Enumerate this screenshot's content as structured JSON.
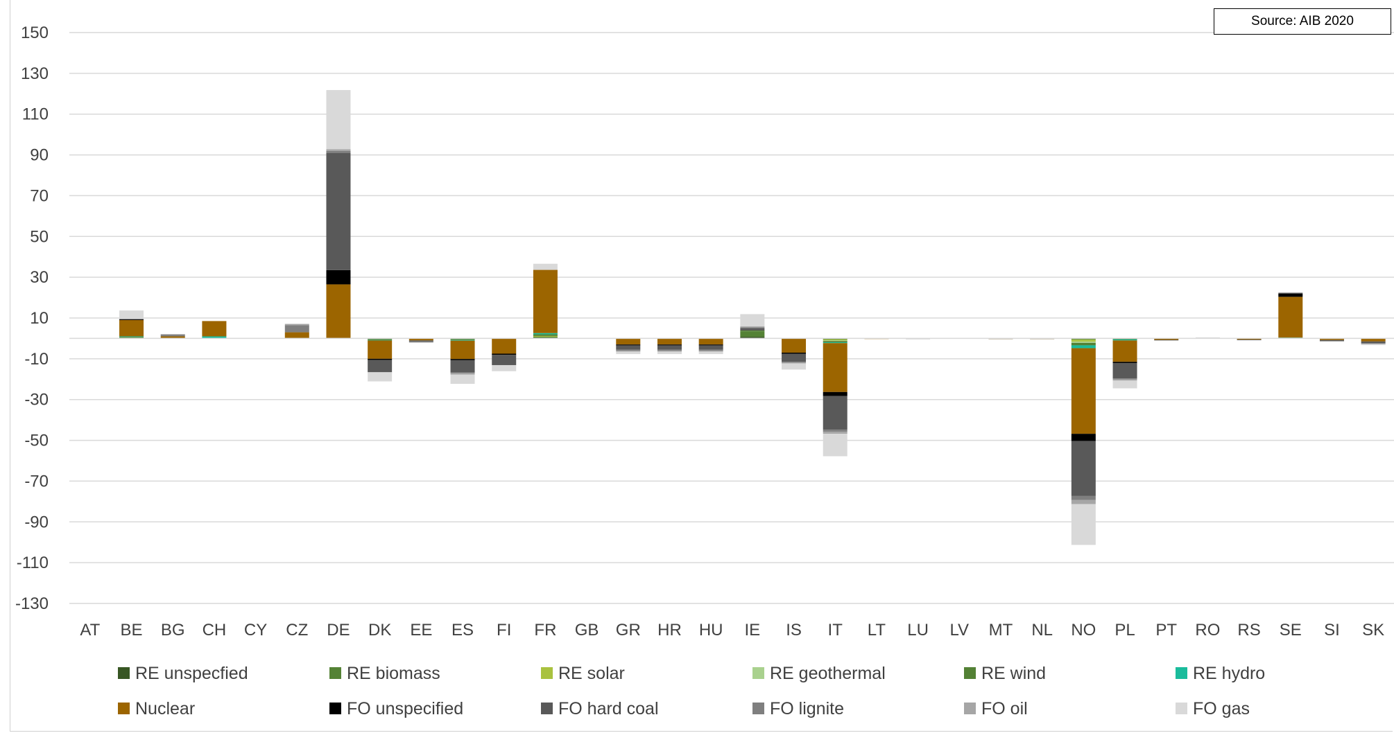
{
  "source_note": "Source: AIB 2020",
  "chart_data": {
    "type": "bar",
    "stacked": true,
    "title": "",
    "xlabel": "",
    "ylabel": "",
    "ylim": [
      -130,
      150
    ],
    "yticks": [
      150,
      130,
      110,
      90,
      70,
      50,
      30,
      10,
      -10,
      -30,
      -50,
      -70,
      -90,
      -110,
      -130
    ],
    "grid": true,
    "legend_position": "bottom",
    "categories": [
      "AT",
      "BE",
      "BG",
      "CH",
      "CY",
      "CZ",
      "DE",
      "DK",
      "EE",
      "ES",
      "FI",
      "FR",
      "GB",
      "GR",
      "HR",
      "HU",
      "IE",
      "IS",
      "IT",
      "LT",
      "LU",
      "LV",
      "MT",
      "NL",
      "NO",
      "PL",
      "PT",
      "RO",
      "RS",
      "SE",
      "SI",
      "SK"
    ],
    "series": [
      {
        "name": "RE unspecfied",
        "color": "#375623",
        "values": [
          0,
          0,
          0,
          0,
          0,
          0,
          0,
          0,
          0,
          0,
          0,
          0,
          0,
          0,
          0,
          0,
          0.8,
          0,
          0,
          0,
          0,
          0,
          0,
          0,
          0,
          0,
          0,
          0,
          0,
          0,
          0,
          0
        ]
      },
      {
        "name": "RE biomass",
        "color": "#548235",
        "values": [
          0,
          0,
          0,
          0,
          0,
          0,
          0,
          -0.4,
          0,
          -0.4,
          0,
          0.8,
          0,
          0,
          0,
          0,
          2.5,
          0,
          -0.5,
          0,
          0,
          0,
          0,
          0,
          -0.6,
          0,
          0,
          0,
          0,
          0,
          0,
          0
        ]
      },
      {
        "name": "RE solar",
        "color": "#a9c23f",
        "values": [
          0,
          0.3,
          0,
          0,
          0,
          0,
          0,
          0,
          0,
          0,
          0,
          0.4,
          0,
          0,
          0,
          0,
          0,
          0,
          -0.5,
          0,
          0,
          0,
          0,
          0,
          -1.0,
          0,
          0,
          0,
          0,
          0,
          0,
          0
        ]
      },
      {
        "name": "RE geothermal",
        "color": "#a9d18e",
        "values": [
          0,
          0,
          0,
          0,
          0,
          0,
          0,
          0,
          0,
          0,
          0,
          0,
          0,
          0,
          0,
          0,
          0,
          0,
          -0.3,
          0,
          0,
          0,
          0,
          0,
          -0.6,
          0,
          0,
          0,
          0,
          0,
          0,
          0
        ]
      },
      {
        "name": "RE wind",
        "color": "#538135",
        "values": [
          0,
          0.4,
          0,
          0,
          0,
          0,
          0,
          -0.4,
          0,
          -0.4,
          0,
          0.8,
          0,
          0,
          0,
          0,
          0.6,
          0,
          -0.6,
          0,
          0,
          0,
          0,
          0,
          -1.2,
          -0.5,
          0,
          0,
          0,
          0,
          0,
          0
        ]
      },
      {
        "name": "RE hydro",
        "color": "#1abc9c",
        "values": [
          0,
          0.3,
          0,
          1.0,
          0,
          0,
          0,
          -0.2,
          0,
          -0.3,
          0,
          0.6,
          0,
          0,
          0,
          0,
          0,
          0,
          -0.4,
          0,
          0,
          0,
          0,
          0,
          -1.4,
          -0.5,
          0,
          0,
          0,
          0.4,
          0,
          0
        ]
      },
      {
        "name": "Nuclear",
        "color": "#9c6500",
        "values": [
          0,
          8.0,
          1.0,
          7.5,
          0,
          3.0,
          26.5,
          -9.0,
          -1.0,
          -9.0,
          -7.5,
          31.0,
          0,
          -3.0,
          -3.0,
          -3.0,
          0,
          -7.0,
          -24.0,
          -0.3,
          0,
          0,
          -0.3,
          -0.3,
          -42.0,
          -10.5,
          -0.7,
          0,
          -0.6,
          20.0,
          -0.8,
          -1.5
        ]
      },
      {
        "name": "FO unspecified",
        "color": "#000000",
        "values": [
          0,
          0.4,
          0,
          0,
          0,
          0,
          7.0,
          -0.6,
          0,
          -0.6,
          -0.6,
          0,
          0,
          -0.5,
          -0.5,
          -0.5,
          0,
          -0.5,
          -2.0,
          0,
          0,
          0,
          0,
          0,
          -3.5,
          -0.6,
          0,
          0,
          0,
          1.5,
          0,
          0
        ]
      },
      {
        "name": "FO hard coal",
        "color": "#595959",
        "values": [
          0,
          0,
          0,
          0,
          0,
          0,
          57.5,
          -6.0,
          -0.5,
          -6.0,
          -5.0,
          0,
          0,
          -2.0,
          -2.0,
          -2.0,
          1.0,
          -4.0,
          -16.5,
          0,
          0,
          0,
          0,
          0,
          -27.0,
          -7.5,
          -0.3,
          0,
          -0.3,
          0.5,
          -0.6,
          -1.0
        ]
      },
      {
        "name": "FO lignite",
        "color": "#7f7f7f",
        "values": [
          0,
          0,
          1.0,
          0,
          0,
          3.5,
          1.0,
          0,
          -0.5,
          -0.3,
          0,
          0,
          0,
          -0.6,
          -0.6,
          -0.6,
          0.6,
          -0.4,
          -1.0,
          0,
          0,
          0,
          0,
          0,
          -2.0,
          -0.5,
          0,
          0,
          0,
          0,
          0,
          0
        ]
      },
      {
        "name": "FO oil",
        "color": "#a6a6a6",
        "values": [
          0,
          0.3,
          0,
          0,
          0,
          0.6,
          0.8,
          0,
          0,
          -0.8,
          0,
          0,
          0,
          -0.4,
          -0.4,
          -0.4,
          0.4,
          -0.4,
          -1.0,
          0,
          0,
          0,
          0,
          0,
          -2.0,
          -0.6,
          0,
          0,
          0,
          0,
          0,
          -0.3
        ]
      },
      {
        "name": "FO gas",
        "color": "#d9d9d9",
        "values": [
          0,
          4.0,
          0,
          0,
          0,
          0,
          29.0,
          -4.5,
          0,
          -4.5,
          -3.0,
          3.0,
          0,
          -1.2,
          -1.2,
          -1.2,
          6.0,
          -3.0,
          -11.0,
          0,
          -0.5,
          0,
          -0.3,
          -0.3,
          -20.0,
          -3.8,
          0,
          0.5,
          0,
          0,
          0,
          -0.5
        ]
      }
    ]
  }
}
